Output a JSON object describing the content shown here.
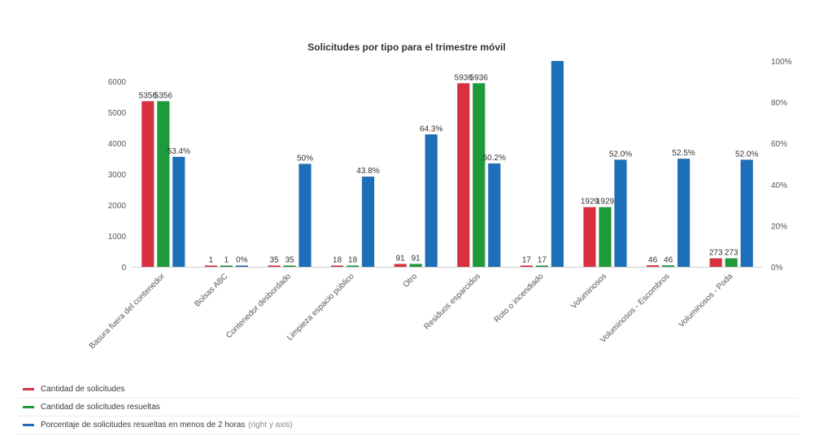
{
  "chart_data": {
    "type": "bar",
    "title": "Solicitudes por tipo para el trimestre móvil",
    "categories": [
      "Basura fuera del contenedor",
      "Bolsas ABC",
      "Contenedor desbordado",
      "Limpieza espacio público",
      "Otro",
      "Residuos esparcidos",
      "Roto o incendiado",
      "Voluminosos",
      "Voluminosos - Escombros",
      "Voluminosos - Poda"
    ],
    "series": [
      {
        "name": "Cantidad de solicitudes",
        "axis": "left",
        "color": "#d9303f",
        "values": [
          5356,
          1,
          35,
          18,
          91,
          5936,
          17,
          1929,
          46,
          273
        ],
        "labels": [
          "5356",
          "1",
          "35",
          "18",
          "91",
          "5936",
          "17",
          "1929",
          "46",
          "273"
        ]
      },
      {
        "name": "Cantidad de solicitudes resueltas",
        "axis": "left",
        "color": "#1f9a3a",
        "values": [
          5356,
          1,
          35,
          18,
          91,
          5936,
          17,
          1929,
          46,
          273
        ],
        "labels": [
          "5356",
          "1",
          "35",
          "18",
          "91",
          "5936",
          "17",
          "1929",
          "46",
          "273"
        ]
      },
      {
        "name": "Porcentaje de solicitudes resueltas en menos de 2 horas",
        "axis": "right",
        "color": "#1c6fb8",
        "values": [
          53.4,
          0,
          50,
          43.8,
          64.3,
          50.2,
          100,
          52.0,
          52.5,
          52.0
        ],
        "labels": [
          "53.4%",
          "0%",
          "50%",
          "43.8%",
          "64.3%",
          "50.2%",
          "",
          "52.0%",
          "52.5%",
          "52.0%"
        ]
      }
    ],
    "y_left": {
      "ticks": [
        0,
        1000,
        2000,
        3000,
        4000,
        5000,
        6000
      ],
      "tick_labels": [
        "0",
        "1000",
        "2000",
        "3000",
        "4000",
        "5000",
        "6000"
      ],
      "ylim": [
        0,
        6000
      ]
    },
    "y_right": {
      "ticks": [
        0,
        20,
        40,
        60,
        80,
        100
      ],
      "tick_labels": [
        "0%",
        "20%",
        "40%",
        "60%",
        "80%",
        "100%"
      ],
      "ylim": [
        0,
        100
      ]
    },
    "grid": false,
    "legend_placement": "bottom",
    "legend_note": "(right y axis)"
  }
}
